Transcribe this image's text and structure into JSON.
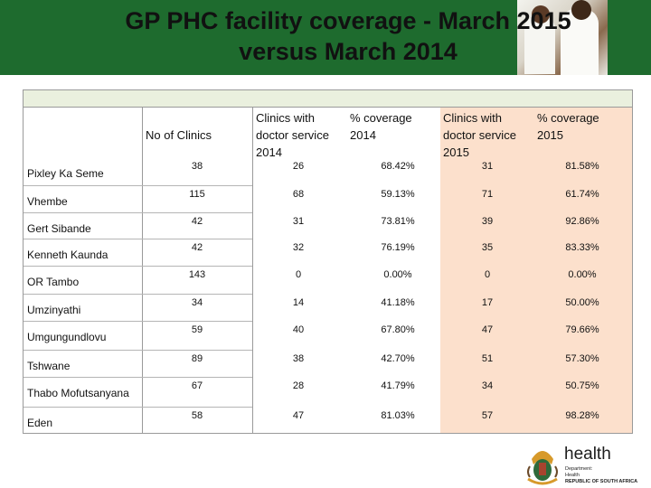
{
  "slide": {
    "title_line1": "GP PHC facility coverage - March 2015",
    "title_line2": "versus March 2014"
  },
  "table": {
    "headers": {
      "clinics": "No of Clinics",
      "doc2014": [
        "Clinics with",
        "doctor service",
        "2014"
      ],
      "cov2014": [
        "% coverage",
        "2014"
      ],
      "doc2015": [
        "Clinics with",
        "doctor service",
        "2015"
      ],
      "cov2015": [
        "% coverage",
        "2015"
      ]
    },
    "rows": [
      {
        "district": "Pixley Ka Seme",
        "clinics": "38",
        "doc2014": "26",
        "cov2014": "68.42%",
        "doc2015": "31",
        "cov2015": "81.58%"
      },
      {
        "district": "Vhembe",
        "clinics": "115",
        "doc2014": "68",
        "cov2014": "59.13%",
        "doc2015": "71",
        "cov2015": "61.74%"
      },
      {
        "district": "Gert Sibande",
        "clinics": "42",
        "doc2014": "31",
        "cov2014": "73.81%",
        "doc2015": "39",
        "cov2015": "92.86%"
      },
      {
        "district": "Kenneth Kaunda",
        "clinics": "42",
        "doc2014": "32",
        "cov2014": "76.19%",
        "doc2015": "35",
        "cov2015": "83.33%"
      },
      {
        "district": "OR Tambo",
        "clinics": "143",
        "doc2014": "0",
        "cov2014": "0.00%",
        "doc2015": "0",
        "cov2015": "0.00%"
      },
      {
        "district": "Umzinyathi",
        "clinics": "34",
        "doc2014": "14",
        "cov2014": "41.18%",
        "doc2015": "17",
        "cov2015": "50.00%"
      },
      {
        "district": "Umgungundlovu",
        "clinics": "59",
        "doc2014": "40",
        "cov2014": "67.80%",
        "doc2015": "47",
        "cov2015": "79.66%"
      },
      {
        "district": "Tshwane",
        "clinics": "89",
        "doc2014": "38",
        "cov2014": "42.70%",
        "doc2015": "51",
        "cov2015": "57.30%"
      },
      {
        "district": "Thabo Mofutsanyana",
        "clinics": "67",
        "doc2014": "28",
        "cov2014": "41.79%",
        "doc2015": "34",
        "cov2015": "50.75%"
      },
      {
        "district": "Eden",
        "clinics": "58",
        "doc2014": "47",
        "cov2014": "81.03%",
        "doc2015": "57",
        "cov2015": "98.28%"
      }
    ]
  },
  "logo": {
    "word": "health",
    "dept_lines": [
      "Department:",
      "Health",
      "REPUBLIC OF SOUTH AFRICA"
    ]
  },
  "colors": {
    "header_green": "#1e6b2e",
    "top_band": "#eaf0de",
    "band_2015": "#fce0cc"
  }
}
